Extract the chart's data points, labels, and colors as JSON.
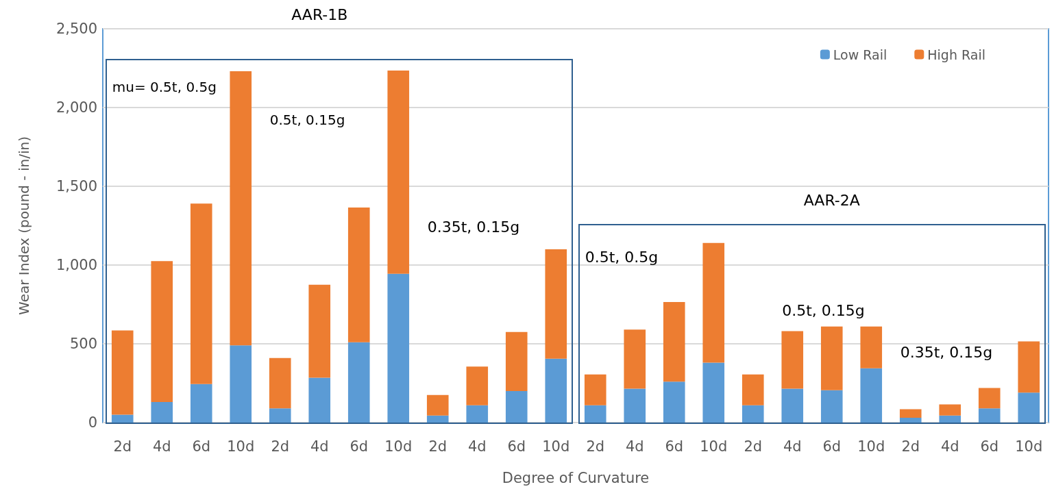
{
  "chart_data": {
    "type": "bar",
    "stacked": true,
    "xlabel": "Degree of Curvature",
    "ylabel": "Wear Index (pound - in/in)",
    "categories": [
      "2d",
      "4d",
      "6d",
      "10d",
      "2d",
      "4d",
      "6d",
      "10d",
      "2d",
      "4d",
      "6d",
      "10d",
      "2d",
      "4d",
      "6d",
      "10d",
      "2d",
      "4d",
      "6d",
      "10d",
      "2d",
      "4d",
      "6d",
      "10d"
    ],
    "series": [
      {
        "name": "Low Rail",
        "color": "#5b9bd5",
        "values": [
          50,
          130,
          245,
          490,
          90,
          285,
          510,
          945,
          45,
          110,
          200,
          405,
          110,
          215,
          260,
          380,
          110,
          215,
          205,
          345,
          30,
          45,
          90,
          190
        ]
      },
      {
        "name": "High Rail",
        "color": "#ed7d31",
        "values": [
          535,
          895,
          1145,
          1740,
          320,
          590,
          855,
          1290,
          130,
          245,
          375,
          695,
          195,
          375,
          505,
          760,
          195,
          365,
          405,
          265,
          55,
          70,
          130,
          325
        ]
      }
    ],
    "ylim": [
      0,
      2500
    ],
    "yticks": [
      {
        "value": 0,
        "label": "0"
      },
      {
        "value": 500,
        "label": "500"
      },
      {
        "value": 1000,
        "label": "1,000"
      },
      {
        "value": 1500,
        "label": "1,500"
      },
      {
        "value": 2000,
        "label": "2,000"
      },
      {
        "value": 2500,
        "label": "2,500"
      }
    ],
    "grid": "y",
    "legend": "top right",
    "annotations": [
      "AAR-1B",
      "mu= 0.5t, 0.5g",
      "0.5t, 0.15g",
      "0.35t, 0.15g",
      "AAR-2A",
      "0.5t, 0.5g",
      "0.5t, 0.15g",
      "0.35t, 0.15g"
    ]
  }
}
